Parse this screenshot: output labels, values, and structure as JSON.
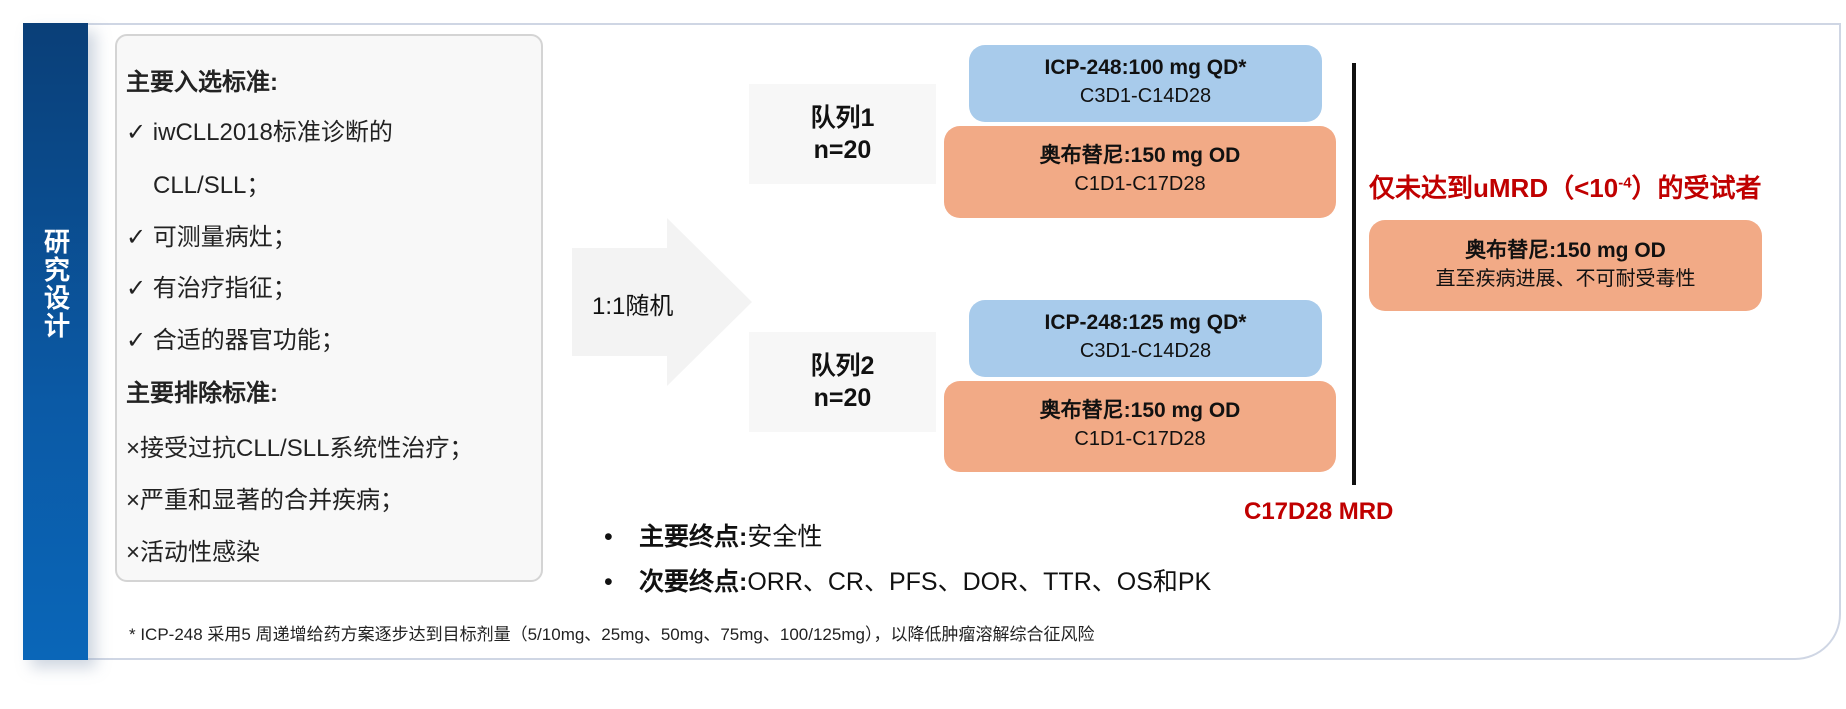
{
  "side_title": "研究设计",
  "inclusion": {
    "heading": "主要入选标准:",
    "items": [
      "✓ iwCLL2018标准诊断的",
      "CLL/SLL；",
      "✓ 可测量病灶；",
      "✓ 有治疗指征；",
      "✓ 合适的器官功能；"
    ]
  },
  "exclusion": {
    "heading": "主要排除标准:",
    "items": [
      "×接受过抗CLL/SLL系统性治疗；",
      "×严重和显著的合并疾病；",
      "×活动性感染"
    ]
  },
  "randomization": "1:1随机",
  "cohorts": [
    {
      "name": "队列1",
      "n": "n=20",
      "icp": {
        "dose": "ICP-248:100 mg QD*",
        "schedule": "C3D1-C14D28"
      },
      "obinutuzumab": {
        "dose": "奥布替尼:150 mg OD",
        "schedule": "C1D1-C17D28"
      }
    },
    {
      "name": "队列2",
      "n": "n=20",
      "icp": {
        "dose": "ICP-248:125 mg QD*",
        "schedule": "C3D1-C14D28"
      },
      "obinutuzumab": {
        "dose": "奥布替尼:150 mg OD",
        "schedule": "C1D1-C17D28"
      }
    }
  ],
  "mrd_timepoint": "C17D28 MRD",
  "maintenance": {
    "heading_pre": "仅未达到uMRD（<10",
    "heading_sup": "-4",
    "heading_post": "）的受试者",
    "dose": "奥布替尼:150 mg OD",
    "duration": "直至疾病进展、不可耐受毒性"
  },
  "endpoints": [
    {
      "label": "主要终点:",
      "value": "安全性"
    },
    {
      "label": "次要终点:",
      "value": "ORR、CR、PFS、DOR、TTR、OS和PK"
    }
  ],
  "footnote": "* ICP-248 采用5 周递增给药方案逐步达到目标剂量（5/10mg、25mg、50mg、75mg、100/125mg），以降低肿瘤溶解综合征风险",
  "colors": {
    "sidebar": "#0b5aa6",
    "icp_box": "#a8cbeb",
    "obinutinib_box": "#f2aa86",
    "highlight": "#c00000"
  }
}
